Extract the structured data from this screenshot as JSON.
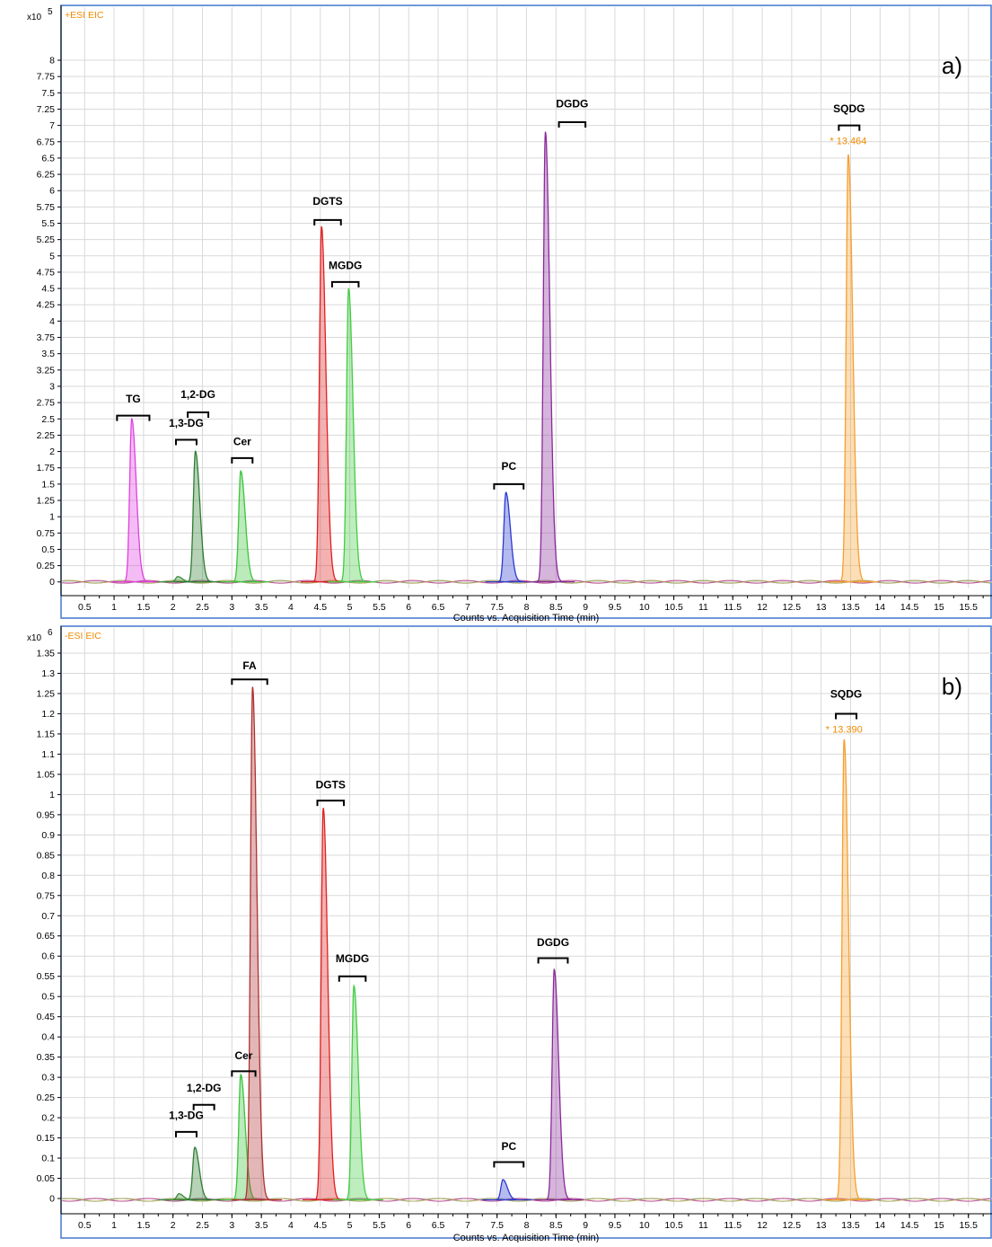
{
  "chart_data": [
    {
      "type": "area",
      "panel_label": "a)",
      "mode_label": "+ESI EIC",
      "scale_label": "x10",
      "scale_exponent": "5",
      "xlabel": "Counts vs. Acquisition Time (min)",
      "xlim": [
        0.1,
        15.9
      ],
      "ylim": [
        -0.1,
        8.4
      ],
      "x_ticks": [
        "0.5",
        "1",
        "1.5",
        "2",
        "2.5",
        "3",
        "3.5",
        "4",
        "4.5",
        "5",
        "5.5",
        "6",
        "6.5",
        "7",
        "7.5",
        "8",
        "8.5",
        "9",
        "9.5",
        "10",
        "10.5",
        "11",
        "11.5",
        "12",
        "12.5",
        "13",
        "13.5",
        "14",
        "14.5",
        "15",
        "15.5"
      ],
      "y_ticks": [
        "0",
        "0.25",
        "0.5",
        "0.75",
        "1",
        "1.25",
        "1.5",
        "1.75",
        "2",
        "2.25",
        "2.5",
        "2.75",
        "3",
        "3.25",
        "3.5",
        "3.75",
        "4",
        "4.25",
        "4.5",
        "4.75",
        "5",
        "5.25",
        "5.5",
        "5.75",
        "6",
        "6.25",
        "6.5",
        "6.75",
        "7",
        "7.25",
        "7.5",
        "7.75",
        "8"
      ],
      "series": [
        {
          "name": "TG",
          "color": "#e040e0",
          "rt": 1.3,
          "height": 2.5
        },
        {
          "name": "1,3-DG",
          "color": "#3a8a3a",
          "rt": 2.08,
          "height": 0.08
        },
        {
          "name": "1,2-DG",
          "color": "#2e7d32",
          "rt": 2.38,
          "height": 2.0
        },
        {
          "name": "Cer",
          "color": "#3cc43c",
          "rt": 3.15,
          "height": 1.7
        },
        {
          "name": "DGTS",
          "color": "#e02020",
          "rt": 4.52,
          "height": 5.45
        },
        {
          "name": "MGDG",
          "color": "#44cc44",
          "rt": 4.98,
          "height": 4.5
        },
        {
          "name": "PC",
          "color": "#2a3ad0",
          "rt": 7.65,
          "height": 1.37
        },
        {
          "name": "DGDG",
          "color": "#8a2a9a",
          "rt": 8.32,
          "height": 6.9
        },
        {
          "name": "SQDG",
          "color": "#f5a030",
          "rt": 13.46,
          "height": 6.55
        }
      ],
      "annotations": [
        {
          "text": "TG",
          "x0": 1.05,
          "x1": 1.6,
          "y": 2.55,
          "ty": 2.75
        },
        {
          "text": "1,2-DG",
          "x0": 2.25,
          "x1": 2.6,
          "y": 2.6,
          "ty": 2.82
        },
        {
          "text": "1,3-DG",
          "x0": 2.05,
          "x1": 2.4,
          "y": 2.18,
          "ty": 2.38
        },
        {
          "text": "Cer",
          "x0": 3.0,
          "x1": 3.35,
          "y": 1.9,
          "ty": 2.1
        },
        {
          "text": "DGTS",
          "x0": 4.4,
          "x1": 4.85,
          "y": 5.55,
          "ty": 5.78
        },
        {
          "text": "MGDG",
          "x0": 4.7,
          "x1": 5.15,
          "y": 4.6,
          "ty": 4.8
        },
        {
          "text": "PC",
          "x0": 7.45,
          "x1": 7.95,
          "y": 1.5,
          "ty": 1.72
        },
        {
          "text": "DGDG",
          "x0": 8.55,
          "x1": 9.0,
          "y": 7.05,
          "ty": 7.28
        },
        {
          "text": "SQDG",
          "x0": 13.3,
          "x1": 13.65,
          "y": 7.0,
          "ty": 7.2
        }
      ],
      "rt_label": "* 13.464"
    },
    {
      "type": "area",
      "panel_label": "b)",
      "mode_label": "-ESI EIC",
      "scale_label": "x10",
      "scale_exponent": "6",
      "xlabel": "Counts vs. Acquisition Time (min)",
      "xlim": [
        0.1,
        15.9
      ],
      "ylim": [
        -0.02,
        1.37
      ],
      "x_ticks": [
        "0.5",
        "1",
        "1.5",
        "2",
        "2.5",
        "3",
        "3.5",
        "4",
        "4.5",
        "5",
        "5.5",
        "6",
        "6.5",
        "7",
        "7.5",
        "8",
        "8.5",
        "9",
        "9.5",
        "10",
        "10.5",
        "11",
        "11.5",
        "12",
        "12.5",
        "13",
        "13.5",
        "14",
        "14.5",
        "15",
        "15.5"
      ],
      "y_ticks": [
        "0",
        "0.05",
        "0.1",
        "0.15",
        "0.2",
        "0.25",
        "0.3",
        "0.35",
        "0.4",
        "0.45",
        "0.5",
        "0.55",
        "0.6",
        "0.65",
        "0.7",
        "0.75",
        "0.8",
        "0.85",
        "0.9",
        "0.95",
        "1",
        "1.05",
        "1.1",
        "1.15",
        "1.2",
        "1.25",
        "1.3",
        "1.35"
      ],
      "series": [
        {
          "name": "1,3-DG",
          "color": "#3a8a3a",
          "rt": 2.1,
          "height": 0.015
        },
        {
          "name": "1,2-DG",
          "color": "#2e7d32",
          "rt": 2.37,
          "height": 0.13
        },
        {
          "name": "Cer",
          "color": "#3cc43c",
          "rt": 3.15,
          "height": 0.31
        },
        {
          "name": "FA",
          "color": "#b03030",
          "rt": 3.35,
          "height": 1.27
        },
        {
          "name": "DGTS",
          "color": "#e02020",
          "rt": 4.55,
          "height": 0.97
        },
        {
          "name": "MGDG",
          "color": "#44cc44",
          "rt": 5.07,
          "height": 0.53
        },
        {
          "name": "PC",
          "color": "#2a3ad0",
          "rt": 7.6,
          "height": 0.05
        },
        {
          "name": "DGDG",
          "color": "#8a2a9a",
          "rt": 8.47,
          "height": 0.57
        },
        {
          "name": "SQDG",
          "color": "#f5a030",
          "rt": 13.39,
          "height": 1.14
        }
      ],
      "annotations": [
        {
          "text": "FA",
          "x0": 3.0,
          "x1": 3.6,
          "y": 1.285,
          "ty": 1.31
        },
        {
          "text": "SQDG",
          "x0": 13.25,
          "x1": 13.6,
          "y": 1.2,
          "ty": 1.24
        },
        {
          "text": "DGTS",
          "x0": 4.45,
          "x1": 4.9,
          "y": 0.985,
          "ty": 1.015
        },
        {
          "text": "MGDG",
          "x0": 4.82,
          "x1": 5.27,
          "y": 0.55,
          "ty": 0.585
        },
        {
          "text": "DGDG",
          "x0": 8.2,
          "x1": 8.7,
          "y": 0.595,
          "ty": 0.625
        },
        {
          "text": "Cer",
          "x0": 3.0,
          "x1": 3.4,
          "y": 0.315,
          "ty": 0.345
        },
        {
          "text": "1,2-DG",
          "x0": 2.35,
          "x1": 2.7,
          "y": 0.232,
          "ty": 0.265
        },
        {
          "text": "1,3-DG",
          "x0": 2.05,
          "x1": 2.4,
          "y": 0.165,
          "ty": 0.197
        },
        {
          "text": "PC",
          "x0": 7.45,
          "x1": 7.95,
          "y": 0.09,
          "ty": 0.12
        }
      ],
      "rt_label": "* 13.390"
    }
  ]
}
